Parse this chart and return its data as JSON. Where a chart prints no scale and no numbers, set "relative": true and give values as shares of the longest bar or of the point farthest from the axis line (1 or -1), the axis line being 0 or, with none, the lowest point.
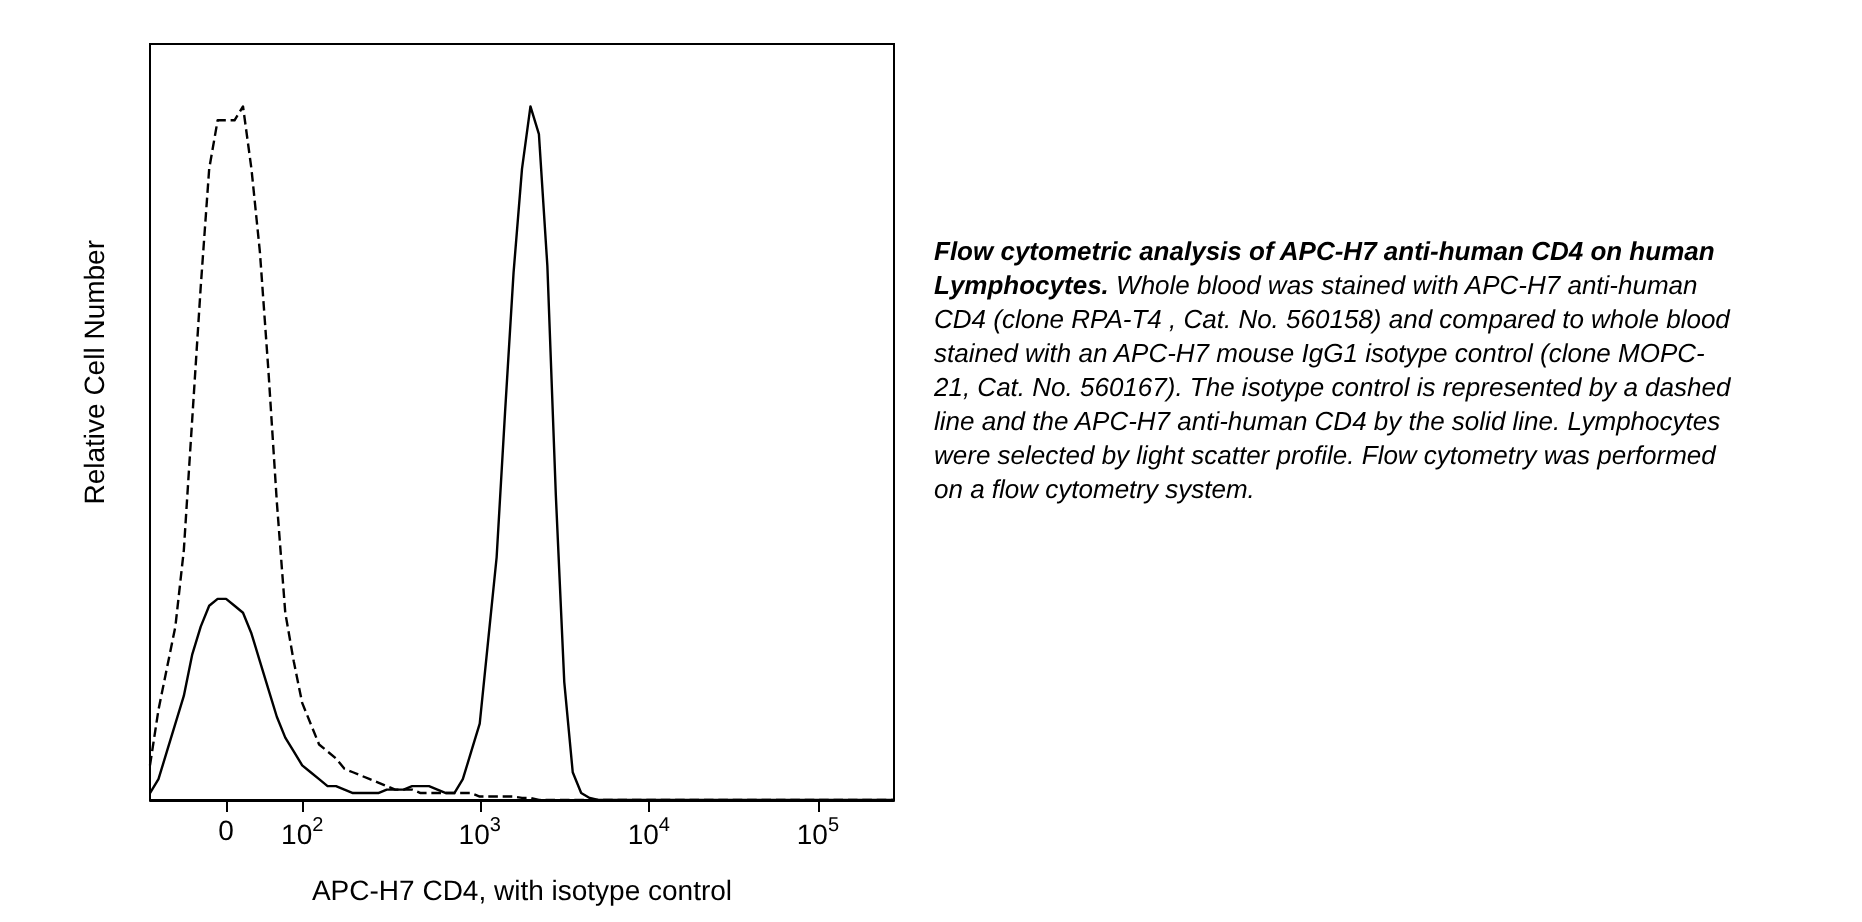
{
  "chart_data": {
    "type": "line",
    "relative": true,
    "title": "Flow cytometric analysis of APC-H7 anti-human CD4 on human Lymphocytes.",
    "annotations": [
      "Whole blood was stained with APC-H7 anti-human CD4 (clone RPA-T4 , Cat. No. 560158) and compared to whole blood stained with an APC-H7 mouse IgG1 isotype control (clone MOPC-21, Cat. No. 560167). The isotype control is represented by a dashed line and the APC-H7 anti-human CD4 by the solid line. Lymphocytes were selected by light scatter profile. Flow cytometry was performed on a flow cytometry system."
    ],
    "xlabel": "APC-H7 CD4, with isotype control",
    "ylabel": "Relative Cell Number",
    "categories": [
      null,
      null,
      null,
      null,
      null,
      null,
      null,
      null,
      null,
      "0",
      null,
      null,
      null,
      null,
      null,
      null,
      null,
      null,
      "10$^{2}$",
      null,
      null,
      null,
      null,
      null,
      null,
      null,
      null,
      null,
      null,
      null,
      null,
      null,
      null,
      null,
      null,
      null,
      null,
      null,
      null,
      "10$^{3}$",
      null,
      null,
      null,
      null,
      null,
      null,
      null,
      null,
      null,
      null,
      null,
      null,
      null,
      null,
      null,
      null,
      null,
      null,
      null,
      "10$^{4}$",
      null,
      null,
      null,
      null,
      null,
      null,
      null,
      null,
      null,
      null,
      null,
      null,
      null,
      null,
      null,
      null,
      null,
      null,
      null,
      "10$^{5}$",
      null,
      null,
      null,
      null,
      null,
      null,
      null,
      null,
      null
    ],
    "grid": false,
    "marker": "none",
    "series": [
      {
        "color": "#000000",
        "line_style": "dashed",
        "values": [
          0.05,
          0.13,
          0.19,
          0.25,
          0.36,
          0.55,
          0.74,
          0.91,
          0.98,
          0.98,
          0.98,
          1.0,
          0.91,
          0.79,
          0.62,
          0.43,
          0.27,
          0.2,
          0.14,
          0.11,
          0.08,
          0.07,
          0.06,
          0.045,
          0.04,
          0.035,
          0.03,
          0.025,
          0.02,
          0.015,
          0.015,
          0.015,
          0.01,
          0.01,
          0.01,
          0.01,
          0.01,
          0.01,
          0.01,
          0.005,
          0.005,
          0.005,
          0.005,
          0.005,
          0.003,
          0.003,
          0,
          0,
          0,
          0,
          0,
          0,
          0,
          0,
          0,
          0,
          0,
          0,
          0,
          0,
          0,
          0,
          0,
          0,
          0,
          0,
          0,
          0,
          0,
          0,
          0,
          0,
          0,
          0,
          0,
          0,
          0,
          0,
          0,
          0,
          0,
          0,
          0,
          0,
          0,
          0,
          0,
          0,
          0
        ]
      },
      {
        "color": "#000000",
        "line_style": "solid",
        "values": [
          0.01,
          0.03,
          0.07,
          0.11,
          0.15,
          0.21,
          0.25,
          0.28,
          0.29,
          0.29,
          0.28,
          0.27,
          0.24,
          0.2,
          0.16,
          0.12,
          0.09,
          0.07,
          0.05,
          0.04,
          0.03,
          0.02,
          0.02,
          0.015,
          0.01,
          0.01,
          0.01,
          0.01,
          0.015,
          0.015,
          0.015,
          0.02,
          0.02,
          0.02,
          0.015,
          0.01,
          0.01,
          0.03,
          0.07,
          0.11,
          0.23,
          0.35,
          0.56,
          0.76,
          0.91,
          1.0,
          0.96,
          0.77,
          0.44,
          0.17,
          0.04,
          0.01,
          0.003,
          0,
          0,
          0,
          0,
          0,
          0,
          0,
          0,
          0,
          0,
          0,
          0,
          0,
          0,
          0,
          0,
          0,
          0,
          0,
          0,
          0,
          0,
          0,
          0,
          0,
          0,
          0,
          0,
          0,
          0,
          0,
          0,
          0,
          0,
          0,
          0
        ]
      }
    ]
  }
}
